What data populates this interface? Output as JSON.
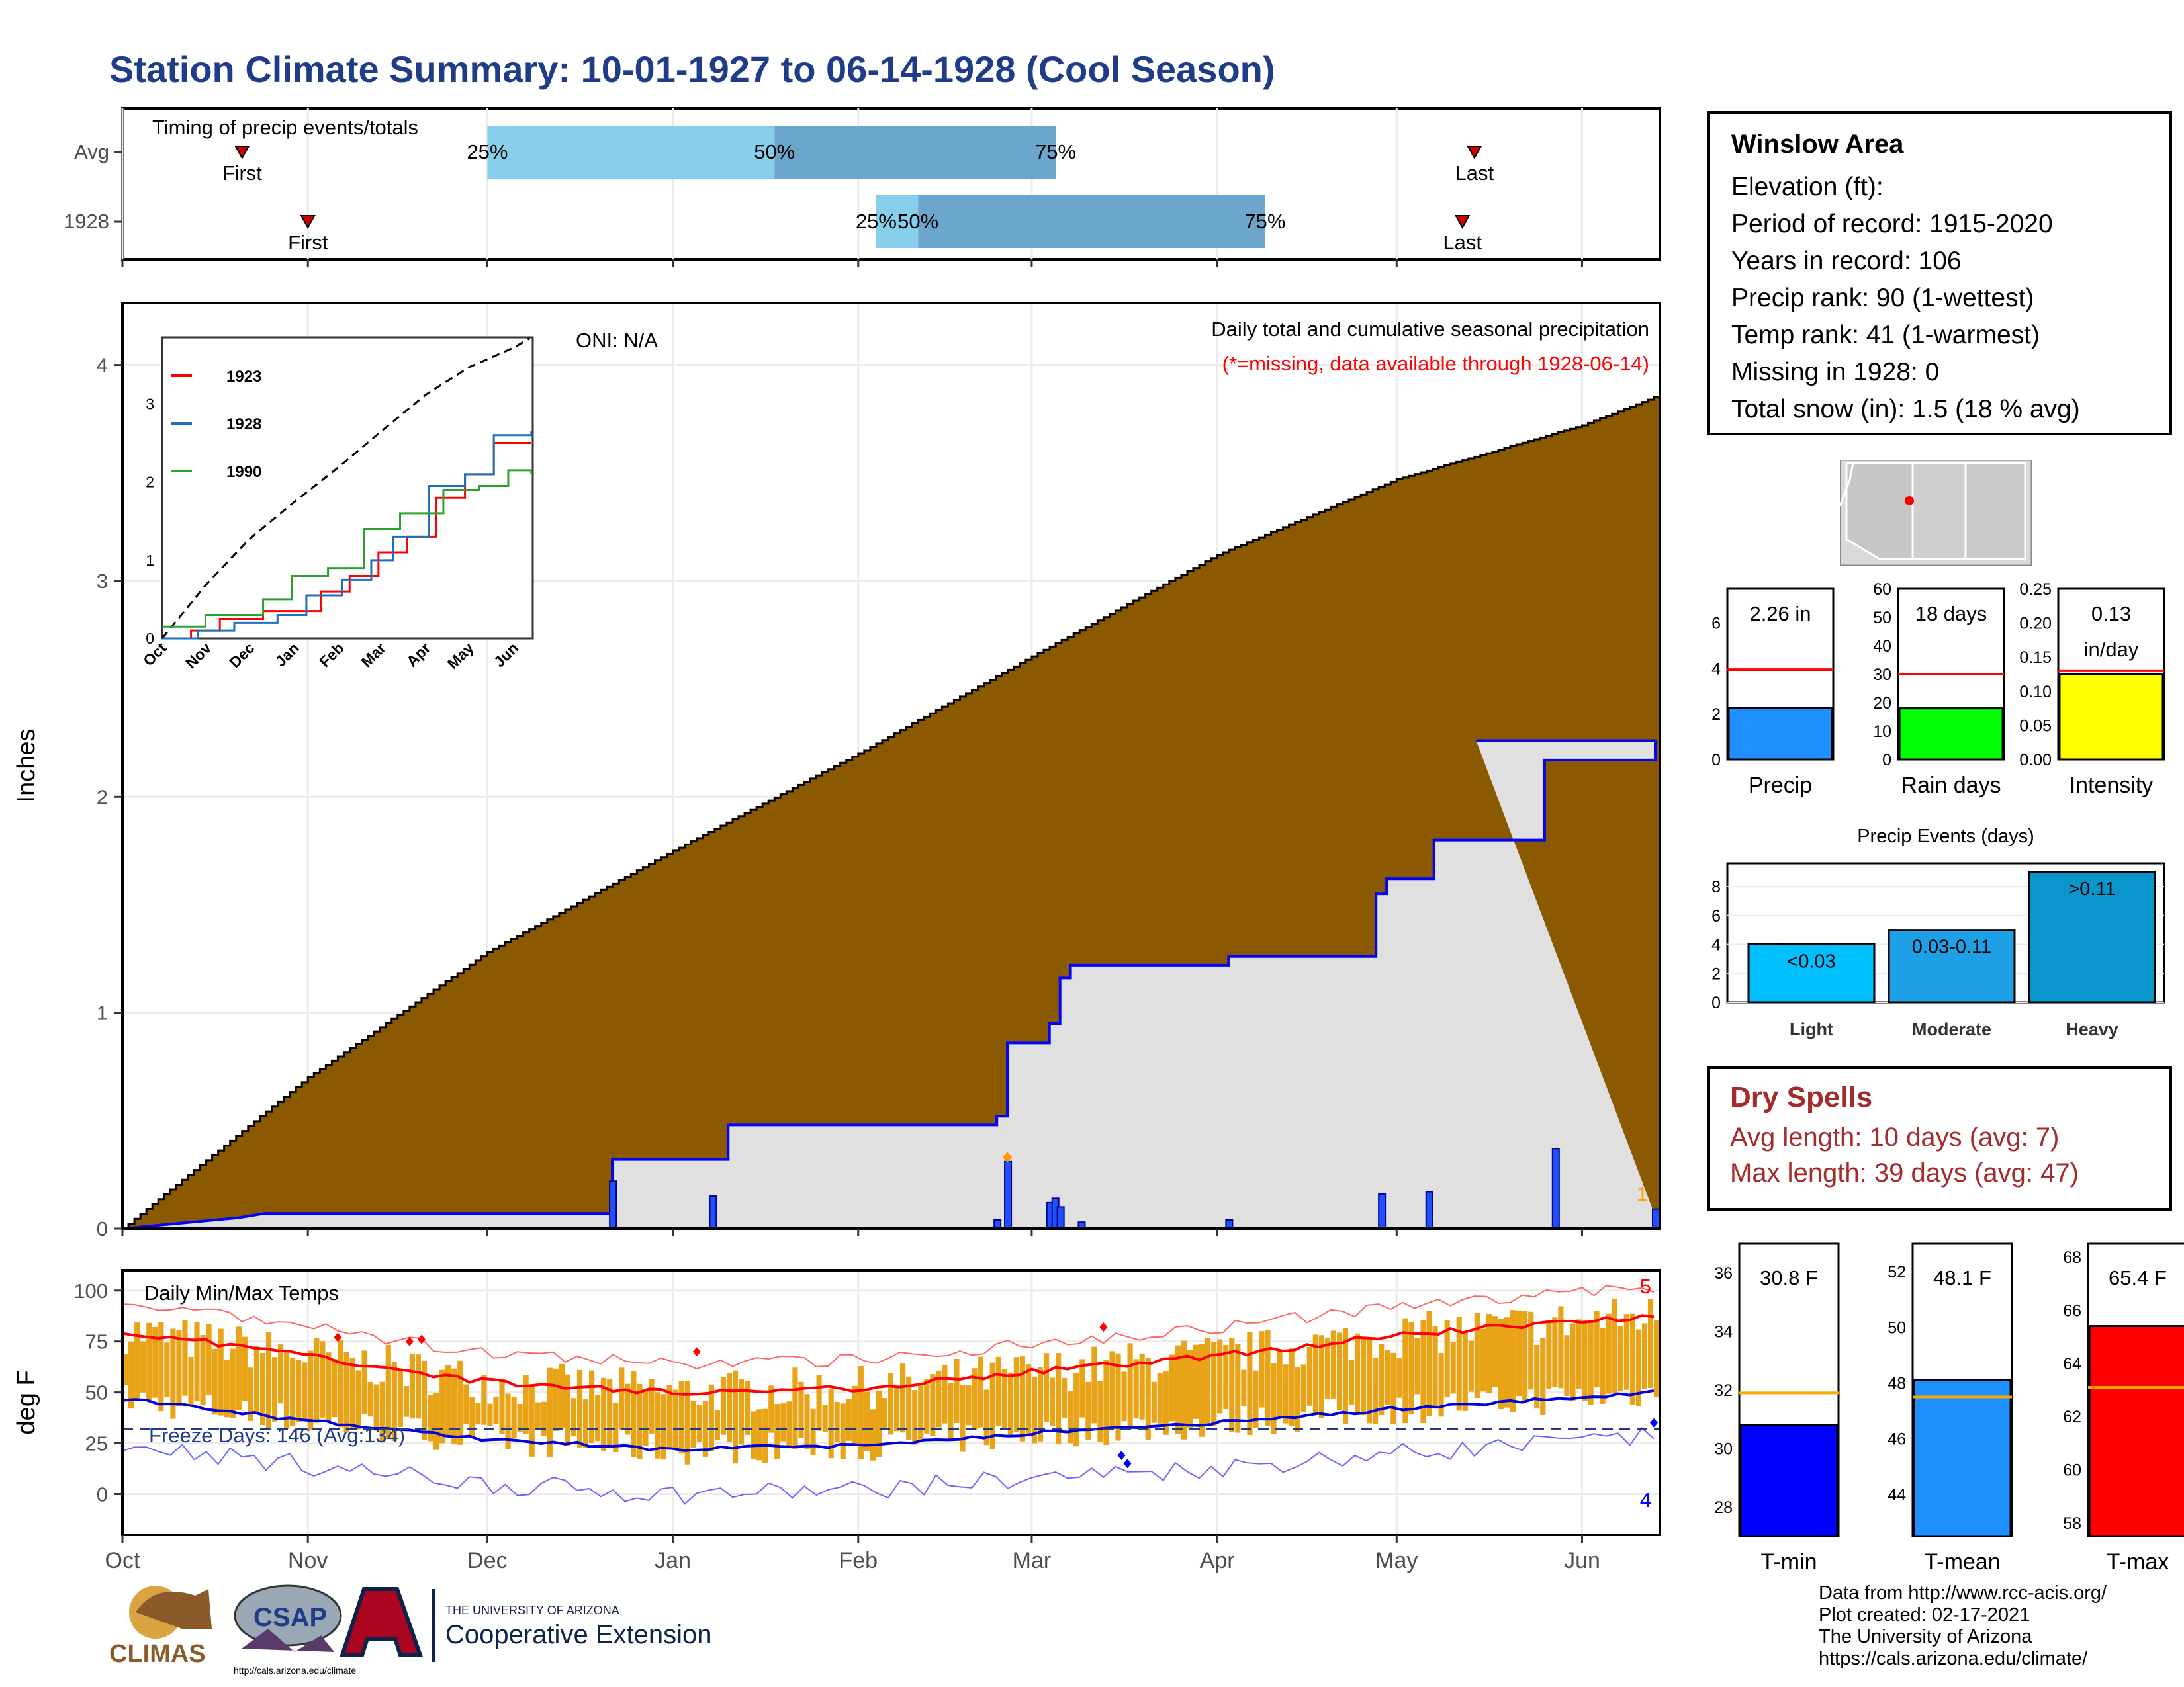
{
  "title": "Station Climate Summary: 10-01-1927 to 06-14-1928 (Cool Season)",
  "months": [
    "Oct",
    "Nov",
    "Dec",
    "Jan",
    "Feb",
    "Mar",
    "Apr",
    "May",
    "Jun"
  ],
  "colors": {
    "title": "#1f3c88",
    "precip_fill": "#8b5a00",
    "avg_fill": "#e0e0e0",
    "blue": "#0000ff",
    "orange": "#e8a317",
    "red": "#ff0000"
  },
  "timing": {
    "label": "Timing of precip events/totals",
    "rows": [
      {
        "name": "Avg",
        "first_label": "First",
        "last_label": "Last",
        "first_day": 20,
        "last_day": 226,
        "p25": "25%",
        "p50": "50%",
        "p75": "75%",
        "d25": 61,
        "d50": 109,
        "d75": 156
      },
      {
        "name": "1928",
        "first_label": "First",
        "last_label": "Last",
        "first_day": 31,
        "last_day": 224,
        "p25": "25%",
        "p50": "50%",
        "p75": "75%",
        "d25": 126,
        "d50": 133,
        "d75": 191
      }
    ]
  },
  "main": {
    "ylabel": "Inches",
    "yticks": [
      "0",
      "1",
      "2",
      "3",
      "4"
    ],
    "oni": "ONI: N/A",
    "legend_title": "Daily total and cumulative seasonal precipitation",
    "legend_note": "(*=missing, data available through 1928-06-14)",
    "corner_label": "1"
  },
  "inset": {
    "xticks": [
      "Oct",
      "Nov",
      "Dec",
      "Jan",
      "Feb",
      "Mar",
      "Apr",
      "May",
      "Jun"
    ],
    "yticks": [
      "0",
      "1",
      "2",
      "3"
    ],
    "series": [
      {
        "name": "1923",
        "color": "#ff0000"
      },
      {
        "name": "1928",
        "color": "#1f6fbf"
      },
      {
        "name": "1990",
        "color": "#2ca02c"
      }
    ]
  },
  "temps": {
    "title": "Daily Min/Max Temps",
    "ylabel": "deg F",
    "yticks": [
      "0",
      "25",
      "50",
      "75",
      "100"
    ],
    "freeze": "Freeze Days: 146 (Avg:134)",
    "label_top": "5",
    "label_bottom": "4"
  },
  "info": {
    "title": "Winslow Area",
    "lines": [
      "Elevation (ft):",
      "Period of record: 1915-2020",
      "Years in record: 106",
      "Precip rank: 90 (1-wettest)",
      "Temp rank: 41 (1-warmest)",
      "Missing in 1928: 0",
      "Total snow (in): 1.5 (18 % avg)"
    ]
  },
  "mini_bars": [
    {
      "label": "Precip",
      "value_text": "2.26 in",
      "value": 2.26,
      "avg": 3.95,
      "max": 7.5,
      "ticks": [
        "0",
        "2",
        "4",
        "6"
      ],
      "color": "#1e90ff"
    },
    {
      "label": "Rain days",
      "value_text": "18 days",
      "value": 18,
      "avg": 30,
      "max": 60,
      "ticks": [
        "0",
        "10",
        "20",
        "30",
        "40",
        "50",
        "60"
      ],
      "color": "#00ff00"
    },
    {
      "label": "Intensity",
      "value_text": "0.13",
      "value_text2": "in/day",
      "value": 0.125,
      "avg": 0.13,
      "max": 0.25,
      "ticks": [
        "0.00",
        "0.05",
        "0.10",
        "0.15",
        "0.20",
        "0.25"
      ],
      "color": "#ffff00"
    }
  ],
  "events": {
    "title": "Precip Events (days)",
    "ticks": [
      "0",
      "2",
      "4",
      "6",
      "8"
    ],
    "bars": [
      {
        "label": "Light",
        "range": "<0.03",
        "value": 4,
        "color": "#00bfff"
      },
      {
        "label": "Moderate",
        "range": "0.03-0.11",
        "value": 5,
        "color": "#1ea0e6"
      },
      {
        "label": "Heavy",
        "range": ">0.11",
        "value": 9,
        "color": "#0a96cc"
      }
    ]
  },
  "dry": {
    "title": "Dry Spells",
    "lines": [
      "Avg length: 10 days (avg: 7)",
      "Max length: 39 days (avg: 47)"
    ]
  },
  "temp_bars": [
    {
      "label": "T-min",
      "value_text": "30.8 F",
      "value": 30.8,
      "avg": 31.9,
      "min": 27,
      "max": 37,
      "ticks": [
        "28",
        "30",
        "32",
        "34",
        "36"
      ],
      "color": "#0000ff"
    },
    {
      "label": "T-mean",
      "value_text": "48.1 F",
      "value": 48.1,
      "avg": 47.5,
      "min": 42.5,
      "max": 53,
      "ticks": [
        "44",
        "46",
        "48",
        "50",
        "52"
      ],
      "color": "#1e90ff"
    },
    {
      "label": "T-max",
      "value_text": "65.4 F",
      "value": 65.4,
      "avg": 63.1,
      "min": 57.5,
      "max": 68.5,
      "ticks": [
        "58",
        "60",
        "62",
        "64",
        "66",
        "68"
      ],
      "color": "#ff0000"
    }
  ],
  "logos": {
    "climas": "CLIMAS",
    "csap": "CSAP",
    "csap_url": "http://cals.arizona.edu/climate",
    "ua_small": "THE UNIVERSITY OF ARIZONA",
    "ua_big": "Cooperative Extension"
  },
  "credits": [
    "Data from http://www.rcc-acis.org/",
    "Plot created: 02-17-2021",
    "The University of Arizona",
    "https://cals.arizona.edu/climate/"
  ],
  "chart_data": [
    {
      "type": "bar",
      "title": "Timing of precip events/totals",
      "categories": [
        "Avg",
        "1928"
      ],
      "series": [
        {
          "name": "25%",
          "values": [
            61,
            126
          ]
        },
        {
          "name": "50%",
          "values": [
            109,
            133
          ]
        },
        {
          "name": "75%",
          "values": [
            156,
            191
          ]
        }
      ]
    },
    {
      "type": "area",
      "title": "Daily total and cumulative seasonal precipitation",
      "ylabel": "Inches",
      "ylim": [
        0,
        4.2
      ],
      "x": [
        "Oct 1",
        "Nov 1",
        "Dec 1",
        "Jan 1",
        "Feb 1",
        "Mar 1",
        "Apr 1",
        "May 1",
        "Jun 1",
        "Jun 14"
      ],
      "series": [
        {
          "name": "Avg cumulative",
          "values": [
            0.0,
            0.7,
            1.28,
            1.75,
            2.2,
            2.65,
            3.12,
            3.47,
            3.72,
            3.85
          ]
        },
        {
          "name": "1928 cumulative",
          "values": [
            0.0,
            0.05,
            0.1,
            0.48,
            0.52,
            1.22,
            1.25,
            2.15,
            2.23,
            2.26
          ]
        }
      ]
    },
    {
      "type": "line",
      "title": "Daily Min/Max Temps",
      "ylabel": "deg F",
      "ylim": [
        -20,
        110
      ],
      "x": [
        "Oct",
        "Nov",
        "Dec",
        "Jan",
        "Feb",
        "Mar",
        "Apr",
        "May",
        "Jun"
      ],
      "series": [
        {
          "name": "Avg max",
          "values": [
            80,
            68,
            55,
            50,
            52,
            60,
            68,
            78,
            88
          ]
        },
        {
          "name": "Avg min",
          "values": [
            47,
            36,
            27,
            22,
            24,
            30,
            35,
            42,
            50
          ]
        }
      ]
    }
  ]
}
